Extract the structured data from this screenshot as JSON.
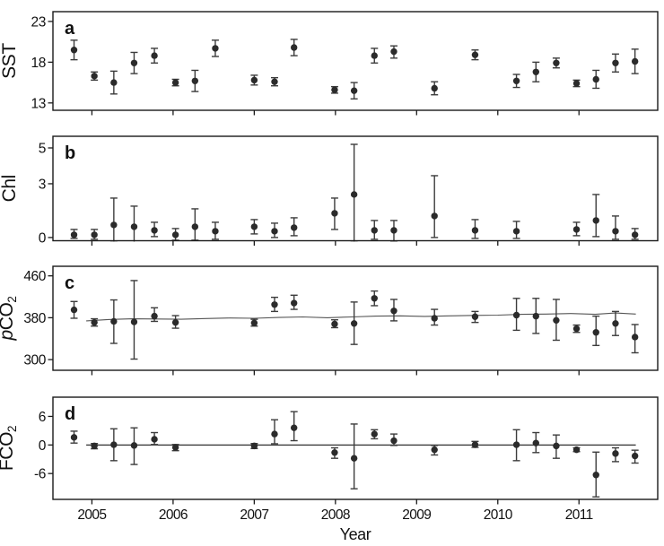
{
  "figure": {
    "description": "Four stacked time-series panels (a-d) of quarterly observations with error bars, 2004-2011",
    "colors": {
      "background": "#ffffff",
      "axis": "#1a1a1a",
      "point": "#2b2b2b",
      "error_bar": "#3c3c3c",
      "trend_line": "#555555"
    }
  },
  "x_axis": {
    "label": "Year",
    "ticks": [
      2005,
      2006,
      2007,
      2008,
      2009,
      2010,
      2011
    ],
    "range": [
      2004.52,
      2011.97
    ]
  },
  "chart_data": [
    {
      "type": "scatter",
      "panel": "a",
      "letter": "a",
      "ylabel": "SST",
      "ylabel_parts": [
        {
          "t": "SST"
        }
      ],
      "yticks": [
        23,
        18,
        13
      ],
      "ylim": [
        12.1,
        24.2
      ],
      "xlim": [
        2004.52,
        2011.97
      ],
      "grid": false,
      "columns": [
        "year",
        "value",
        "err_low",
        "err_high"
      ],
      "points": [
        [
          2004.78,
          19.5,
          18.3,
          20.7
        ],
        [
          2005.03,
          16.3,
          15.8,
          16.8
        ],
        [
          2005.27,
          15.5,
          14.1,
          16.9
        ],
        [
          2005.52,
          17.9,
          16.6,
          19.2
        ],
        [
          2005.77,
          18.8,
          17.9,
          19.7
        ],
        [
          2006.03,
          15.5,
          15.1,
          15.9
        ],
        [
          2006.27,
          15.7,
          14.4,
          17.0
        ],
        [
          2006.52,
          19.7,
          18.7,
          20.7
        ],
        [
          2007.0,
          15.8,
          15.2,
          16.4
        ],
        [
          2007.25,
          15.6,
          15.1,
          16.1
        ],
        [
          2007.49,
          19.8,
          18.8,
          20.8
        ],
        [
          2007.99,
          14.6,
          14.2,
          15.0
        ],
        [
          2008.23,
          14.5,
          13.5,
          15.5
        ],
        [
          2008.48,
          18.8,
          17.9,
          19.7
        ],
        [
          2008.72,
          19.3,
          18.5,
          20.0
        ],
        [
          2009.22,
          14.8,
          14.0,
          15.6
        ],
        [
          2009.72,
          18.9,
          18.3,
          19.5
        ],
        [
          2010.23,
          15.7,
          14.9,
          16.5
        ],
        [
          2010.47,
          16.8,
          15.6,
          18.0
        ],
        [
          2010.72,
          17.9,
          17.3,
          18.5
        ],
        [
          2010.97,
          15.4,
          15.0,
          15.8
        ],
        [
          2011.21,
          15.9,
          14.8,
          17.0
        ],
        [
          2011.45,
          17.9,
          16.8,
          19.0
        ],
        [
          2011.69,
          18.1,
          16.6,
          19.6
        ]
      ]
    },
    {
      "type": "scatter",
      "panel": "b",
      "letter": "b",
      "ylabel": "Chl",
      "ylabel_parts": [
        {
          "t": "Chl"
        }
      ],
      "yticks": [
        5,
        3,
        0
      ],
      "ylim": [
        -0.18,
        5.65
      ],
      "xlim": [
        2004.52,
        2011.97
      ],
      "grid": false,
      "columns": [
        "year",
        "value",
        "err_low",
        "err_high"
      ],
      "points": [
        [
          2004.78,
          0.15,
          -0.05,
          0.45
        ],
        [
          2005.03,
          0.15,
          -0.1,
          0.45
        ],
        [
          2005.27,
          0.7,
          -0.25,
          2.2
        ],
        [
          2005.52,
          0.6,
          -0.35,
          1.75
        ],
        [
          2005.77,
          0.4,
          0.05,
          0.85
        ],
        [
          2006.03,
          0.15,
          -0.15,
          0.5
        ],
        [
          2006.27,
          0.6,
          -0.15,
          1.6
        ],
        [
          2006.52,
          0.35,
          -0.1,
          0.85
        ],
        [
          2007.0,
          0.6,
          0.2,
          1.0
        ],
        [
          2007.25,
          0.35,
          0.0,
          0.8
        ],
        [
          2007.49,
          0.55,
          0.1,
          1.1
        ],
        [
          2007.99,
          1.35,
          0.45,
          2.2
        ],
        [
          2008.23,
          2.4,
          -0.25,
          5.2
        ],
        [
          2008.48,
          0.4,
          -0.1,
          0.95
        ],
        [
          2008.72,
          0.4,
          -0.2,
          0.95
        ],
        [
          2009.22,
          1.2,
          0.0,
          3.45
        ],
        [
          2009.72,
          0.4,
          -0.05,
          1.0
        ],
        [
          2010.23,
          0.35,
          -0.05,
          0.9
        ],
        [
          2010.97,
          0.45,
          0.1,
          0.85
        ],
        [
          2011.21,
          0.95,
          0.05,
          2.4
        ],
        [
          2011.45,
          0.35,
          -0.1,
          1.2
        ],
        [
          2011.69,
          0.15,
          -0.1,
          0.5
        ]
      ]
    },
    {
      "type": "scatter",
      "panel": "c",
      "letter": "c",
      "ylabel": "pCO2",
      "ylabel_parts": [
        {
          "t": "p",
          "italic": true
        },
        {
          "t": "CO"
        },
        {
          "t": "2",
          "sub": true
        }
      ],
      "yticks": [
        460,
        380,
        300
      ],
      "ylim": [
        279.6,
        478.3
      ],
      "xlim": [
        2004.52,
        2011.97
      ],
      "grid": false,
      "columns": [
        "year",
        "value",
        "err_low",
        "err_high"
      ],
      "points": [
        [
          2004.78,
          395,
          379,
          411
        ],
        [
          2005.03,
          371,
          364,
          378
        ],
        [
          2005.27,
          373,
          331,
          414
        ],
        [
          2005.52,
          372,
          301,
          451
        ],
        [
          2005.77,
          383,
          373,
          399
        ],
        [
          2006.03,
          371,
          360,
          384
        ],
        [
          2007.0,
          370,
          364,
          377
        ],
        [
          2007.25,
          405,
          392,
          419
        ],
        [
          2007.49,
          408,
          396,
          423
        ],
        [
          2007.99,
          368,
          361,
          376
        ],
        [
          2008.23,
          369,
          329,
          410
        ],
        [
          2008.48,
          417,
          403,
          431
        ],
        [
          2008.72,
          393,
          374,
          415
        ],
        [
          2009.22,
          379,
          366,
          396
        ],
        [
          2009.72,
          382,
          371,
          392
        ],
        [
          2010.23,
          385,
          356,
          417
        ],
        [
          2010.47,
          383,
          350,
          417
        ],
        [
          2010.72,
          375,
          337,
          415
        ],
        [
          2010.97,
          359,
          352,
          366
        ],
        [
          2011.21,
          352,
          327,
          383
        ],
        [
          2011.45,
          369,
          346,
          392
        ],
        [
          2011.69,
          343,
          313,
          367
        ]
      ],
      "trend_line": {
        "x": [
          2004.93,
          2005.2,
          2005.5,
          2005.8,
          2006.1,
          2006.4,
          2006.7,
          2007.0,
          2007.3,
          2007.6,
          2007.9,
          2008.2,
          2008.5,
          2008.8,
          2009.1,
          2009.4,
          2009.7,
          2010.0,
          2010.3,
          2010.6,
          2010.9,
          2011.2,
          2011.45,
          2011.7
        ],
        "y": [
          374,
          376.5,
          378,
          377.5,
          377,
          378.5,
          379.5,
          379,
          380.5,
          381.5,
          380,
          381.5,
          383,
          383.5,
          382.5,
          383.5,
          384.5,
          385,
          386.5,
          387,
          388,
          386.5,
          389,
          387
        ]
      }
    },
    {
      "type": "scatter",
      "panel": "d",
      "letter": "d",
      "ylabel": "FCO2",
      "ylabel_parts": [
        {
          "t": "F"
        },
        {
          "t": "CO"
        },
        {
          "t": "2",
          "sub": true
        }
      ],
      "yticks": [
        6,
        0,
        -6
      ],
      "ylim": [
        -11.43,
        10.04
      ],
      "xlim": [
        2004.52,
        2011.97
      ],
      "grid": false,
      "columns": [
        "year",
        "value",
        "err_low",
        "err_high"
      ],
      "zero_line": {
        "at": 0,
        "from": 2004.93,
        "to": 2011.7
      },
      "points": [
        [
          2004.78,
          1.6,
          0.4,
          2.9
        ],
        [
          2005.03,
          -0.2,
          -0.8,
          0.3
        ],
        [
          2005.27,
          0.05,
          -3.3,
          3.4
        ],
        [
          2005.52,
          -0.1,
          -4.1,
          3.6
        ],
        [
          2005.77,
          1.2,
          0.1,
          2.6
        ],
        [
          2006.03,
          -0.5,
          -1.2,
          0.1
        ],
        [
          2007.0,
          -0.2,
          -0.75,
          0.3
        ],
        [
          2007.25,
          2.3,
          0.25,
          5.3
        ],
        [
          2007.49,
          3.6,
          0.9,
          7.0
        ],
        [
          2007.99,
          -1.6,
          -2.8,
          -0.6
        ],
        [
          2008.23,
          -2.8,
          -9.2,
          4.4
        ],
        [
          2008.48,
          2.3,
          1.3,
          3.2
        ],
        [
          2008.72,
          0.9,
          -0.1,
          2.3
        ],
        [
          2009.22,
          -1.0,
          -2.1,
          -0.1
        ],
        [
          2009.72,
          0.05,
          -0.5,
          0.75
        ],
        [
          2010.23,
          0.05,
          -3.3,
          3.2
        ],
        [
          2010.47,
          0.4,
          -1.6,
          2.6
        ],
        [
          2010.72,
          -0.2,
          -2.8,
          2.1
        ],
        [
          2010.97,
          -1.0,
          -1.4,
          -0.6
        ],
        [
          2011.21,
          -6.3,
          -10.9,
          -1.5
        ],
        [
          2011.45,
          -1.8,
          -3.5,
          -0.6
        ],
        [
          2011.69,
          -2.3,
          -3.8,
          -1.1
        ]
      ]
    }
  ]
}
